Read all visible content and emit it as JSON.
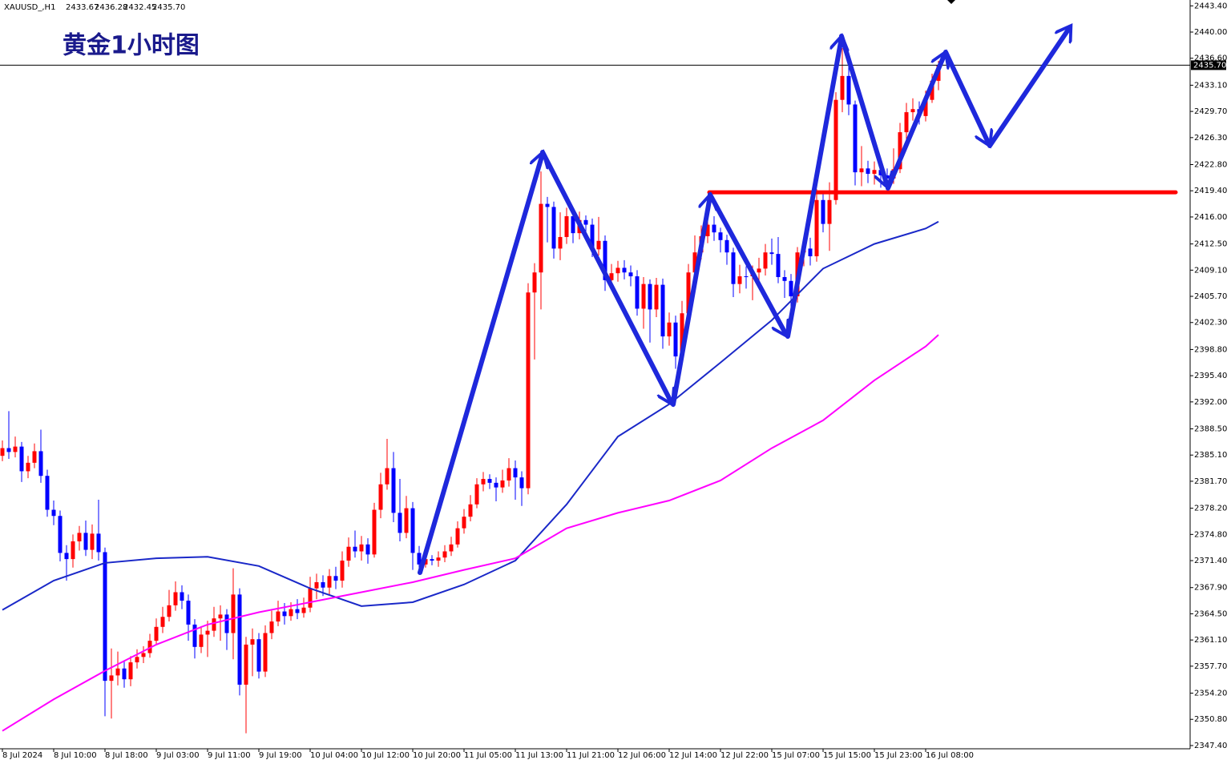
{
  "chart_data": {
    "type": "candlestick",
    "title": "黄金1小时图",
    "info": {
      "symbol": "XAUUSD_,H1",
      "values": [
        "2433.67",
        "2436.28",
        "2432.45",
        "2435.70"
      ]
    },
    "up_color": "#ff0000",
    "down_color": "#0000ff",
    "categories": [
      "8 Jul 2024",
      null,
      null,
      null,
      null,
      null,
      null,
      null,
      "8 Jul 10:00",
      null,
      null,
      null,
      null,
      null,
      null,
      null,
      "8 Jul 18:00",
      null,
      null,
      null,
      null,
      null,
      null,
      null,
      "9 Jul 03:00",
      null,
      null,
      null,
      null,
      null,
      null,
      null,
      "9 Jul 11:00",
      null,
      null,
      null,
      null,
      null,
      null,
      null,
      "9 Jul 19:00",
      null,
      null,
      null,
      null,
      null,
      null,
      null,
      "10 Jul 04:00",
      null,
      null,
      null,
      null,
      null,
      null,
      null,
      "10 Jul 12:00",
      null,
      null,
      null,
      null,
      null,
      null,
      null,
      "10 Jul 20:00",
      null,
      null,
      null,
      null,
      null,
      null,
      null,
      "11 Jul 05:00",
      null,
      null,
      null,
      null,
      null,
      null,
      null,
      "11 Jul 13:00",
      null,
      null,
      null,
      null,
      null,
      null,
      null,
      "11 Jul 21:00",
      null,
      null,
      null,
      null,
      null,
      null,
      null,
      "12 Jul 06:00",
      null,
      null,
      null,
      null,
      null,
      null,
      null,
      "12 Jul 14:00",
      null,
      null,
      null,
      null,
      null,
      null,
      null,
      "12 Jul 22:00",
      null,
      null,
      null,
      null,
      null,
      null,
      null,
      "15 Jul 07:00",
      null,
      null,
      null,
      null,
      null,
      null,
      null,
      "15 Jul 15:00",
      null,
      null,
      null,
      null,
      null,
      null,
      null,
      "15 Jul 23:00",
      null,
      null,
      null,
      null,
      null,
      null,
      null,
      "16 Jul 08:00",
      null,
      null
    ],
    "open": [
      2385.0,
      2386.0,
      2385.5,
      2386.2,
      2383.0,
      2384.1,
      2385.6,
      2382.4,
      2378.0,
      2377.2,
      2372.4,
      2371.6,
      2373.9,
      2375.0,
      2372.8,
      2374.9,
      2372.5,
      2355.8,
      2356.5,
      2357.4,
      2356.0,
      2358.2,
      2358.9,
      2359.4,
      2361.0,
      2362.8,
      2364.1,
      2365.6,
      2367.3,
      2366.2,
      2363.1,
      2360.2,
      2361.8,
      2362.3,
      2363.9,
      2364.4,
      2362.0,
      2367.0,
      2355.3,
      2360.5,
      2361.2,
      2357.0,
      2362.0,
      2363.5,
      2364.8,
      2364.2,
      2365.1,
      2364.6,
      2365.3,
      2367.8,
      2368.6,
      2367.9,
      2369.4,
      2368.8,
      2371.4,
      2373.2,
      2372.6,
      2373.5,
      2372.2,
      2378.0,
      2381.3,
      2383.4,
      2377.6,
      2375.0,
      2378.2,
      2372.4,
      2370.9,
      2371.6,
      2371.4,
      2371.8,
      2372.6,
      2373.5,
      2375.6,
      2377.1,
      2378.7,
      2381.3,
      2382.0,
      2381.5,
      2380.9,
      2381.8,
      2383.4,
      2382.2,
      2380.8,
      2406.2,
      2408.8,
      2417.7,
      2417.3,
      2411.9,
      2413.4,
      2416.1,
      2413.9,
      2415.6,
      2415.0,
      2411.8,
      2412.9,
      2407.8,
      2408.7,
      2409.4,
      2408.8,
      2408.3,
      2404.1,
      2407.3,
      2404.0,
      2407.2,
      2400.5,
      2402.3,
      2397.9,
      2403.5,
      2408.8,
      2411.4,
      2413.5,
      2415.0,
      2414.0,
      2413.0,
      2411.4,
      2407.3,
      2408.3,
      2408.3,
      2408.8,
      2409.3,
      2411.4,
      2411.2,
      2408.2,
      2407.7,
      2405.7,
      2411.4,
      2411.9,
      2410.9,
      2418.2,
      2415.1,
      2418.2,
      2431.2,
      2434.3,
      2430.6,
      2421.8,
      2422.3,
      2421.6,
      2422.1,
      2421.4,
      2421.0,
      2422.2,
      2427.0,
      2429.6,
      2430.0,
      2429.1,
      2431.2,
      2433.67
    ],
    "high": [
      2387.0,
      2390.8,
      2387.5,
      2386.8,
      2385.0,
      2386.6,
      2388.4,
      2383.2,
      2379.2,
      2377.9,
      2373.4,
      2374.8,
      2375.9,
      2376.6,
      2376.1,
      2379.3,
      2373.1,
      2360.0,
      2359.6,
      2358.3,
      2359.0,
      2359.9,
      2360.3,
      2361.9,
      2363.9,
      2365.4,
      2367.6,
      2368.7,
      2368.2,
      2367.0,
      2363.8,
      2362.9,
      2363.6,
      2365.4,
      2365.6,
      2365.1,
      2370.4,
      2367.8,
      2361.5,
      2362.6,
      2362.0,
      2363.0,
      2364.9,
      2366.2,
      2365.9,
      2366.0,
      2366.4,
      2366.6,
      2369.3,
      2369.7,
      2369.5,
      2370.3,
      2370.6,
      2372.6,
      2374.4,
      2375.3,
      2374.6,
      2374.3,
      2378.9,
      2382.8,
      2387.2,
      2385.5,
      2382.0,
      2379.8,
      2379.0,
      2373.3,
      2372.4,
      2372.1,
      2372.6,
      2373.4,
      2374.5,
      2376.5,
      2378.1,
      2379.9,
      2382.1,
      2382.9,
      2382.6,
      2382.2,
      2383.2,
      2384.7,
      2384.4,
      2383.0,
      2407.4,
      2410.0,
      2421.9,
      2418.6,
      2418.0,
      2416.6,
      2417.2,
      2416.8,
      2416.7,
      2416.2,
      2415.8,
      2416.0,
      2413.6,
      2409.9,
      2410.3,
      2410.4,
      2409.7,
      2409.1,
      2408.2,
      2407.9,
      2408.1,
      2408.0,
      2403.6,
      2403.2,
      2405.1,
      2409.9,
      2413.6,
      2414.9,
      2417.3,
      2416.1,
      2414.6,
      2413.7,
      2412.0,
      2409.8,
      2409.6,
      2409.7,
      2410.7,
      2412.5,
      2413.2,
      2413.4,
      2409.1,
      2408.6,
      2412.1,
      2413.0,
      2413.3,
      2419.6,
      2419.0,
      2420.5,
      2432.2,
      2437.9,
      2435.5,
      2431.1,
      2425.2,
      2423.3,
      2423.2,
      2422.9,
      2422.3,
      2424.9,
      2428.2,
      2430.8,
      2431.4,
      2431.0,
      2432.4,
      2434.6,
      2436.28
    ],
    "low": [
      2384.3,
      2384.6,
      2384.8,
      2381.6,
      2382.1,
      2383.4,
      2381.5,
      2377.1,
      2376.0,
      2371.3,
      2368.8,
      2370.5,
      2372.7,
      2372.0,
      2371.6,
      2371.4,
      2351.2,
      2350.9,
      2355.2,
      2354.9,
      2355.1,
      2357.4,
      2358.1,
      2358.8,
      2360.4,
      2362.0,
      2363.5,
      2364.9,
      2365.1,
      2361.0,
      2358.7,
      2359.4,
      2358.9,
      2361.5,
      2361.0,
      2359.8,
      2358.6,
      2353.9,
      2349.0,
      2356.4,
      2356.1,
      2356.3,
      2361.2,
      2362.9,
      2363.1,
      2363.6,
      2363.8,
      2364.0,
      2364.7,
      2366.4,
      2366.8,
      2366.9,
      2367.7,
      2367.9,
      2370.6,
      2371.8,
      2371.4,
      2371.0,
      2371.8,
      2376.9,
      2380.6,
      2376.4,
      2373.9,
      2374.3,
      2370.2,
      2370.0,
      2370.5,
      2370.8,
      2370.6,
      2371.2,
      2372.0,
      2373.1,
      2374.9,
      2376.5,
      2378.2,
      2380.4,
      2380.7,
      2379.1,
      2380.2,
      2381.0,
      2379.3,
      2378.5,
      2380.0,
      2397.5,
      2404.0,
      2412.7,
      2410.6,
      2410.4,
      2412.5,
      2412.6,
      2413.1,
      2413.7,
      2410.8,
      2411.0,
      2406.4,
      2406.9,
      2407.6,
      2407.9,
      2407.0,
      2403.2,
      2401.5,
      2399.7,
      2403.0,
      2398.9,
      2399.3,
      2396.3,
      2397.0,
      2402.8,
      2407.9,
      2410.5,
      2412.6,
      2412.9,
      2411.4,
      2409.8,
      2405.6,
      2406.1,
      2406.7,
      2405.2,
      2407.3,
      2408.4,
      2409.8,
      2407.4,
      2405.5,
      2403.4,
      2404.9,
      2409.6,
      2409.7,
      2410.2,
      2414.0,
      2411.6,
      2417.6,
      2429.6,
      2429.2,
      2420.1,
      2420.0,
      2420.4,
      2420.2,
      2419.8,
      2419.9,
      2420.3,
      2421.7,
      2425.5,
      2428.5,
      2428.0,
      2428.4,
      2430.8,
      2432.45
    ],
    "close": [
      2386.0,
      2385.5,
      2386.2,
      2383.0,
      2384.1,
      2385.6,
      2382.4,
      2378.0,
      2377.2,
      2372.4,
      2371.6,
      2373.9,
      2375.0,
      2372.8,
      2374.9,
      2372.5,
      2355.8,
      2356.5,
      2357.4,
      2356.0,
      2358.2,
      2358.9,
      2359.4,
      2361.0,
      2362.8,
      2364.1,
      2365.6,
      2367.3,
      2366.2,
      2363.1,
      2360.2,
      2361.8,
      2362.3,
      2363.9,
      2364.4,
      2362.0,
      2367.0,
      2355.3,
      2360.5,
      2361.2,
      2357.0,
      2362.0,
      2363.5,
      2364.8,
      2364.2,
      2365.1,
      2364.6,
      2365.3,
      2367.8,
      2368.6,
      2367.9,
      2369.4,
      2368.8,
      2371.4,
      2373.2,
      2372.6,
      2373.5,
      2372.2,
      2378.0,
      2381.3,
      2383.4,
      2377.6,
      2375.0,
      2378.2,
      2372.4,
      2370.9,
      2371.6,
      2371.4,
      2371.8,
      2372.6,
      2373.5,
      2375.6,
      2377.1,
      2378.7,
      2381.3,
      2382.0,
      2381.5,
      2380.9,
      2381.8,
      2383.4,
      2382.2,
      2380.8,
      2406.2,
      2408.8,
      2417.7,
      2417.3,
      2411.9,
      2413.4,
      2416.1,
      2413.9,
      2415.6,
      2415.0,
      2411.8,
      2412.9,
      2407.8,
      2408.7,
      2409.4,
      2408.8,
      2408.3,
      2404.1,
      2407.3,
      2404.0,
      2407.2,
      2400.5,
      2402.3,
      2397.9,
      2403.5,
      2408.8,
      2411.4,
      2413.5,
      2415.0,
      2414.0,
      2413.0,
      2411.4,
      2407.3,
      2408.3,
      2408.3,
      2408.8,
      2409.3,
      2411.4,
      2411.2,
      2408.2,
      2407.7,
      2405.7,
      2411.4,
      2411.9,
      2410.9,
      2418.2,
      2415.1,
      2418.2,
      2431.2,
      2434.3,
      2430.6,
      2421.8,
      2422.3,
      2421.6,
      2422.1,
      2421.4,
      2421.0,
      2422.2,
      2427.0,
      2429.6,
      2430.0,
      2429.1,
      2431.2,
      2433.67,
      2435.7
    ],
    "lines": [
      {
        "color": "#1a28c8",
        "x": [
          0,
          8,
          16,
          24,
          32,
          40,
          48,
          56,
          64,
          72,
          80,
          88,
          96,
          104,
          112,
          120,
          128,
          136,
          144,
          146
        ],
        "values": [
          2365.0,
          2368.8,
          2371.1,
          2371.7,
          2371.9,
          2370.7,
          2367.8,
          2365.5,
          2366.0,
          2368.3,
          2371.4,
          2378.7,
          2387.5,
          2391.7,
          2397.1,
          2402.6,
          2409.3,
          2412.5,
          2414.5,
          2415.4
        ]
      },
      {
        "color": "#ff00ff",
        "x": [
          0,
          8,
          16,
          24,
          32,
          40,
          48,
          56,
          64,
          72,
          80,
          88,
          96,
          104,
          112,
          120,
          128,
          136,
          144,
          146
        ],
        "values": [
          2349.3,
          2353.4,
          2357.1,
          2360.5,
          2363.1,
          2364.7,
          2366.0,
          2367.3,
          2368.6,
          2370.2,
          2371.7,
          2375.6,
          2377.6,
          2379.2,
          2381.8,
          2386.0,
          2389.6,
          2394.8,
          2399.2,
          2400.7
        ]
      }
    ],
    "hline": {
      "value": 2419.2,
      "color": "#ff0000"
    },
    "current_price": {
      "value": 2435.7,
      "label": "2435.70"
    },
    "ylim": [
      2346.98,
      2444.16
    ],
    "yticks": [
      {
        "value": 2443.4,
        "label": "2443.40"
      },
      {
        "value": 2440,
        "label": "2440.00"
      },
      {
        "value": 2436.6,
        "label": "2436.60"
      },
      {
        "value": 2433.1,
        "label": "2433.10"
      },
      {
        "value": 2429.7,
        "label": "2429.70"
      },
      {
        "value": 2426.3,
        "label": "2426.30"
      },
      {
        "value": 2422.8,
        "label": "2422.80"
      },
      {
        "value": 2419.4,
        "label": "2419.40"
      },
      {
        "value": 2416,
        "label": "2416.00"
      },
      {
        "value": 2412.5,
        "label": "2412.50"
      },
      {
        "value": 2409.1,
        "label": "2409.10"
      },
      {
        "value": 2405.7,
        "label": "2405.70"
      },
      {
        "value": 2402.3,
        "label": "2402.30"
      },
      {
        "value": 2398.8,
        "label": "2398.80"
      },
      {
        "value": 2395.4,
        "label": "2395.40"
      },
      {
        "value": 2392,
        "label": "2392.00"
      },
      {
        "value": 2388.5,
        "label": "2388.50"
      },
      {
        "value": 2385.1,
        "label": "2385.10"
      },
      {
        "value": 2381.7,
        "label": "2381.70"
      },
      {
        "value": 2378.2,
        "label": "2378.20"
      },
      {
        "value": 2374.8,
        "label": "2374.80"
      },
      {
        "value": 2371.4,
        "label": "2371.40"
      },
      {
        "value": 2367.9,
        "label": "2367.90"
      },
      {
        "value": 2364.5,
        "label": "2364.50"
      },
      {
        "value": 2361.1,
        "label": "2361.10"
      },
      {
        "value": 2357.7,
        "label": "2357.70"
      },
      {
        "value": 2354.2,
        "label": "2354.20"
      },
      {
        "value": 2350.8,
        "label": "2350.80"
      },
      {
        "value": 2347.4,
        "label": "2347.40"
      }
    ]
  }
}
